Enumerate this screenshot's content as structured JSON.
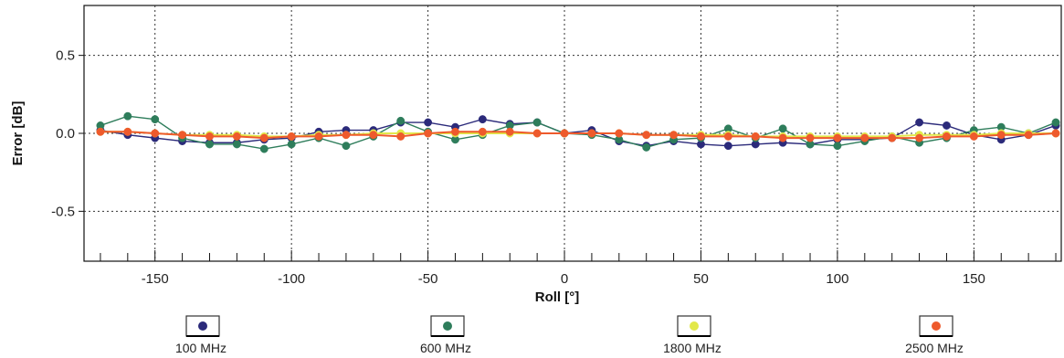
{
  "chart_data": {
    "type": "line",
    "title": "",
    "xlabel": "Roll [°]",
    "ylabel": "Error [dB]",
    "xlim": [
      -176,
      182
    ],
    "ylim": [
      -0.82,
      0.82
    ],
    "xticks": [
      -150,
      -100,
      -50,
      0,
      50,
      100,
      150
    ],
    "xtick_labels": [
      "-150",
      "-100",
      "-50",
      "0",
      "50",
      "100",
      "150"
    ],
    "yticks": [
      -0.5,
      0.0,
      0.5
    ],
    "ytick_labels": [
      "-0.5",
      "0.0",
      "0.5"
    ],
    "grid": true,
    "legend_position": "bottom",
    "x": [
      -170,
      -160,
      -150,
      -140,
      -130,
      -120,
      -110,
      -100,
      -90,
      -80,
      -70,
      -60,
      -50,
      -40,
      -30,
      -20,
      -10,
      0,
      10,
      20,
      30,
      40,
      50,
      60,
      70,
      80,
      90,
      100,
      110,
      120,
      130,
      140,
      150,
      160,
      170,
      180
    ],
    "series": [
      {
        "name": "100 MHz",
        "color": "#2b2a7a",
        "values": [
          0.02,
          -0.01,
          -0.03,
          -0.05,
          -0.06,
          -0.06,
          -0.04,
          -0.03,
          0.01,
          0.02,
          0.02,
          0.07,
          0.07,
          0.04,
          0.09,
          0.06,
          0.07,
          0.0,
          0.02,
          -0.05,
          -0.08,
          -0.05,
          -0.07,
          -0.08,
          -0.07,
          -0.06,
          -0.07,
          -0.04,
          -0.04,
          -0.03,
          0.07,
          0.05,
          -0.01,
          -0.04,
          -0.01,
          0.05
        ]
      },
      {
        "name": "600 MHz",
        "color": "#2e7d5b",
        "values": [
          0.05,
          0.11,
          0.09,
          -0.03,
          -0.07,
          -0.07,
          -0.1,
          -0.07,
          -0.03,
          -0.08,
          -0.02,
          0.08,
          0.01,
          -0.04,
          -0.01,
          0.05,
          0.07,
          0.0,
          -0.01,
          -0.04,
          -0.09,
          -0.04,
          -0.03,
          0.03,
          -0.03,
          0.03,
          -0.07,
          -0.08,
          -0.05,
          -0.02,
          -0.06,
          -0.03,
          0.02,
          0.04,
          0.0,
          0.07
        ]
      },
      {
        "name": "1800 MHz",
        "color": "#e2e84a",
        "values": [
          0.01,
          0.01,
          0.0,
          -0.01,
          -0.01,
          -0.01,
          -0.02,
          -0.02,
          -0.01,
          -0.01,
          0.0,
          0.0,
          0.0,
          0.0,
          0.0,
          0.0,
          0.0,
          0.0,
          0.0,
          0.0,
          -0.01,
          -0.01,
          -0.01,
          -0.01,
          -0.02,
          -0.02,
          -0.02,
          -0.02,
          -0.02,
          -0.02,
          -0.01,
          -0.01,
          -0.01,
          0.0,
          0.0,
          0.0
        ]
      },
      {
        "name": "2500 MHz",
        "color": "#ee5a2c",
        "values": [
          0.01,
          0.01,
          0.0,
          -0.01,
          -0.02,
          -0.02,
          -0.03,
          -0.02,
          -0.02,
          -0.01,
          -0.01,
          -0.02,
          0.0,
          0.01,
          0.01,
          0.01,
          0.0,
          0.0,
          0.0,
          0.0,
          -0.01,
          -0.01,
          -0.02,
          -0.02,
          -0.02,
          -0.03,
          -0.03,
          -0.03,
          -0.03,
          -0.03,
          -0.03,
          -0.02,
          -0.02,
          -0.01,
          -0.01,
          0.0
        ]
      }
    ]
  }
}
